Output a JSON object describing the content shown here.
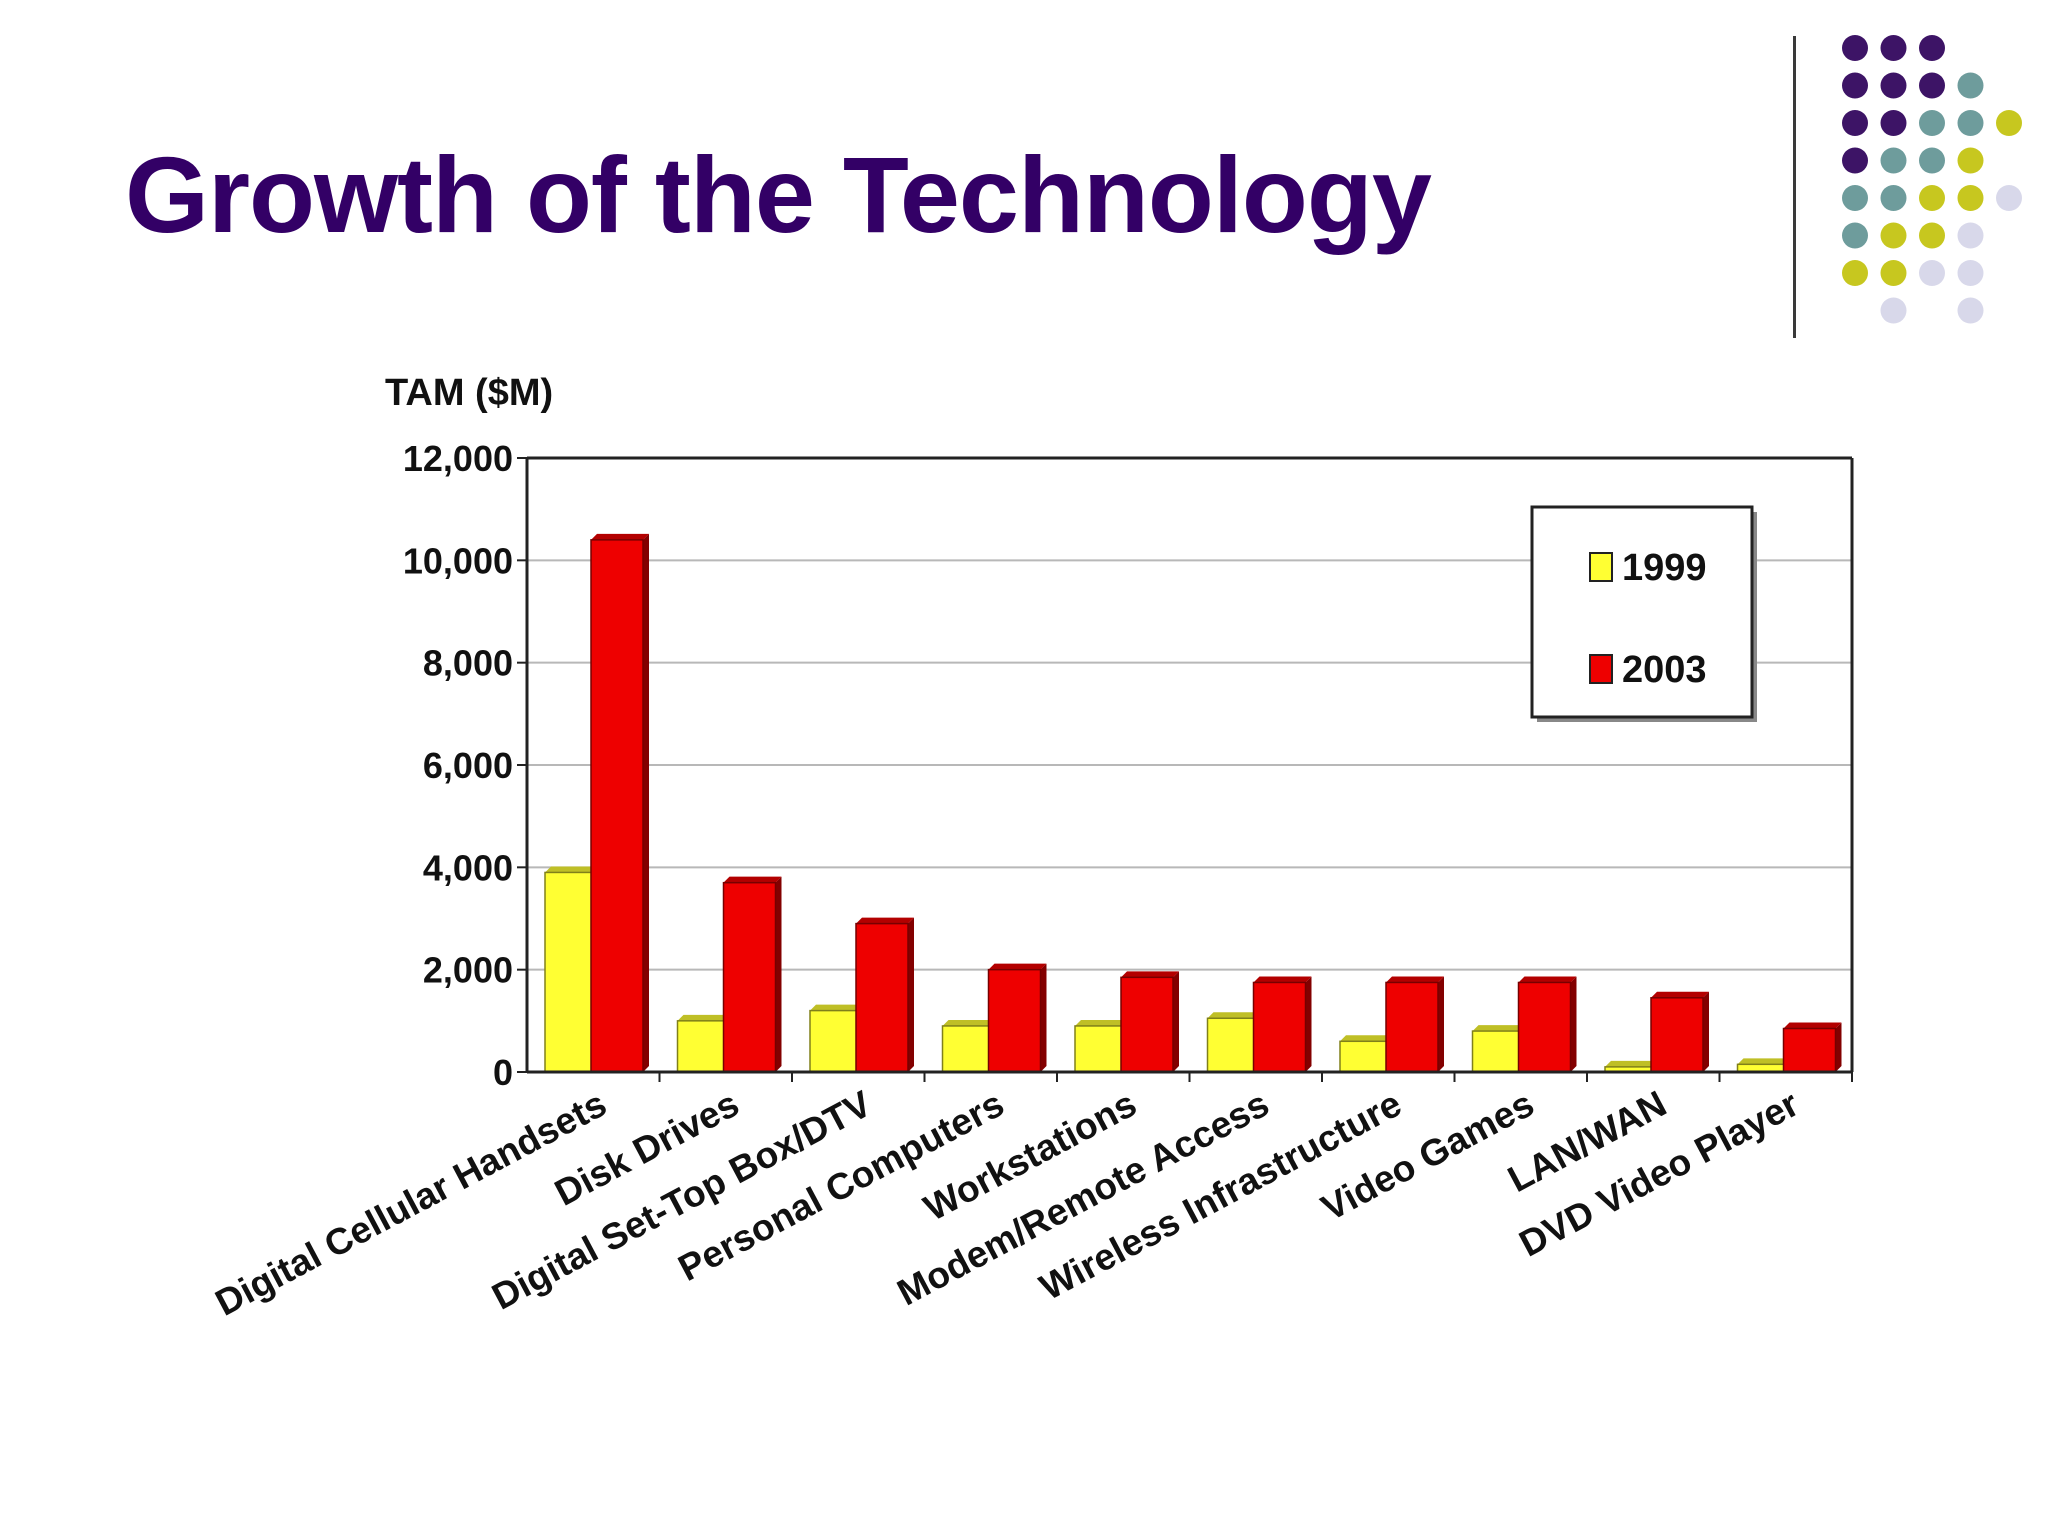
{
  "slide": {
    "title": "Growth of the Technology",
    "palette": [
      "#3d1466",
      "#6e9c9c",
      "#c7c71f",
      "#d8d8ea"
    ]
  },
  "chart_data": {
    "type": "bar",
    "ylabel": "TAM ($M)",
    "ylim": [
      0,
      12000
    ],
    "yticks": [
      "12,000",
      "10,000",
      "8,000",
      "6,000",
      "4,000",
      "2,000",
      "0"
    ],
    "ytick_values": [
      12000,
      10000,
      8000,
      6000,
      4000,
      2000,
      0
    ],
    "categories": [
      "Digital Cellular Handsets",
      "Disk Drives",
      "Digital Set-Top Box/DTV",
      "Personal Computers",
      "Workstations",
      "Modem/Remote Access",
      "Wireless Infrastructure",
      "Video Games",
      "LAN/WAN",
      "DVD Video Player"
    ],
    "series": [
      {
        "name": "1999",
        "color": "#ffff33",
        "values": [
          3900,
          1000,
          1200,
          900,
          900,
          1050,
          600,
          800,
          100,
          150
        ]
      },
      {
        "name": "2003",
        "color": "#ee0000",
        "values": [
          10400,
          3700,
          2900,
          2000,
          1850,
          1750,
          1750,
          1750,
          1450,
          850
        ]
      }
    ],
    "grid": true,
    "legend": "top-right",
    "style": "3d-bars"
  }
}
